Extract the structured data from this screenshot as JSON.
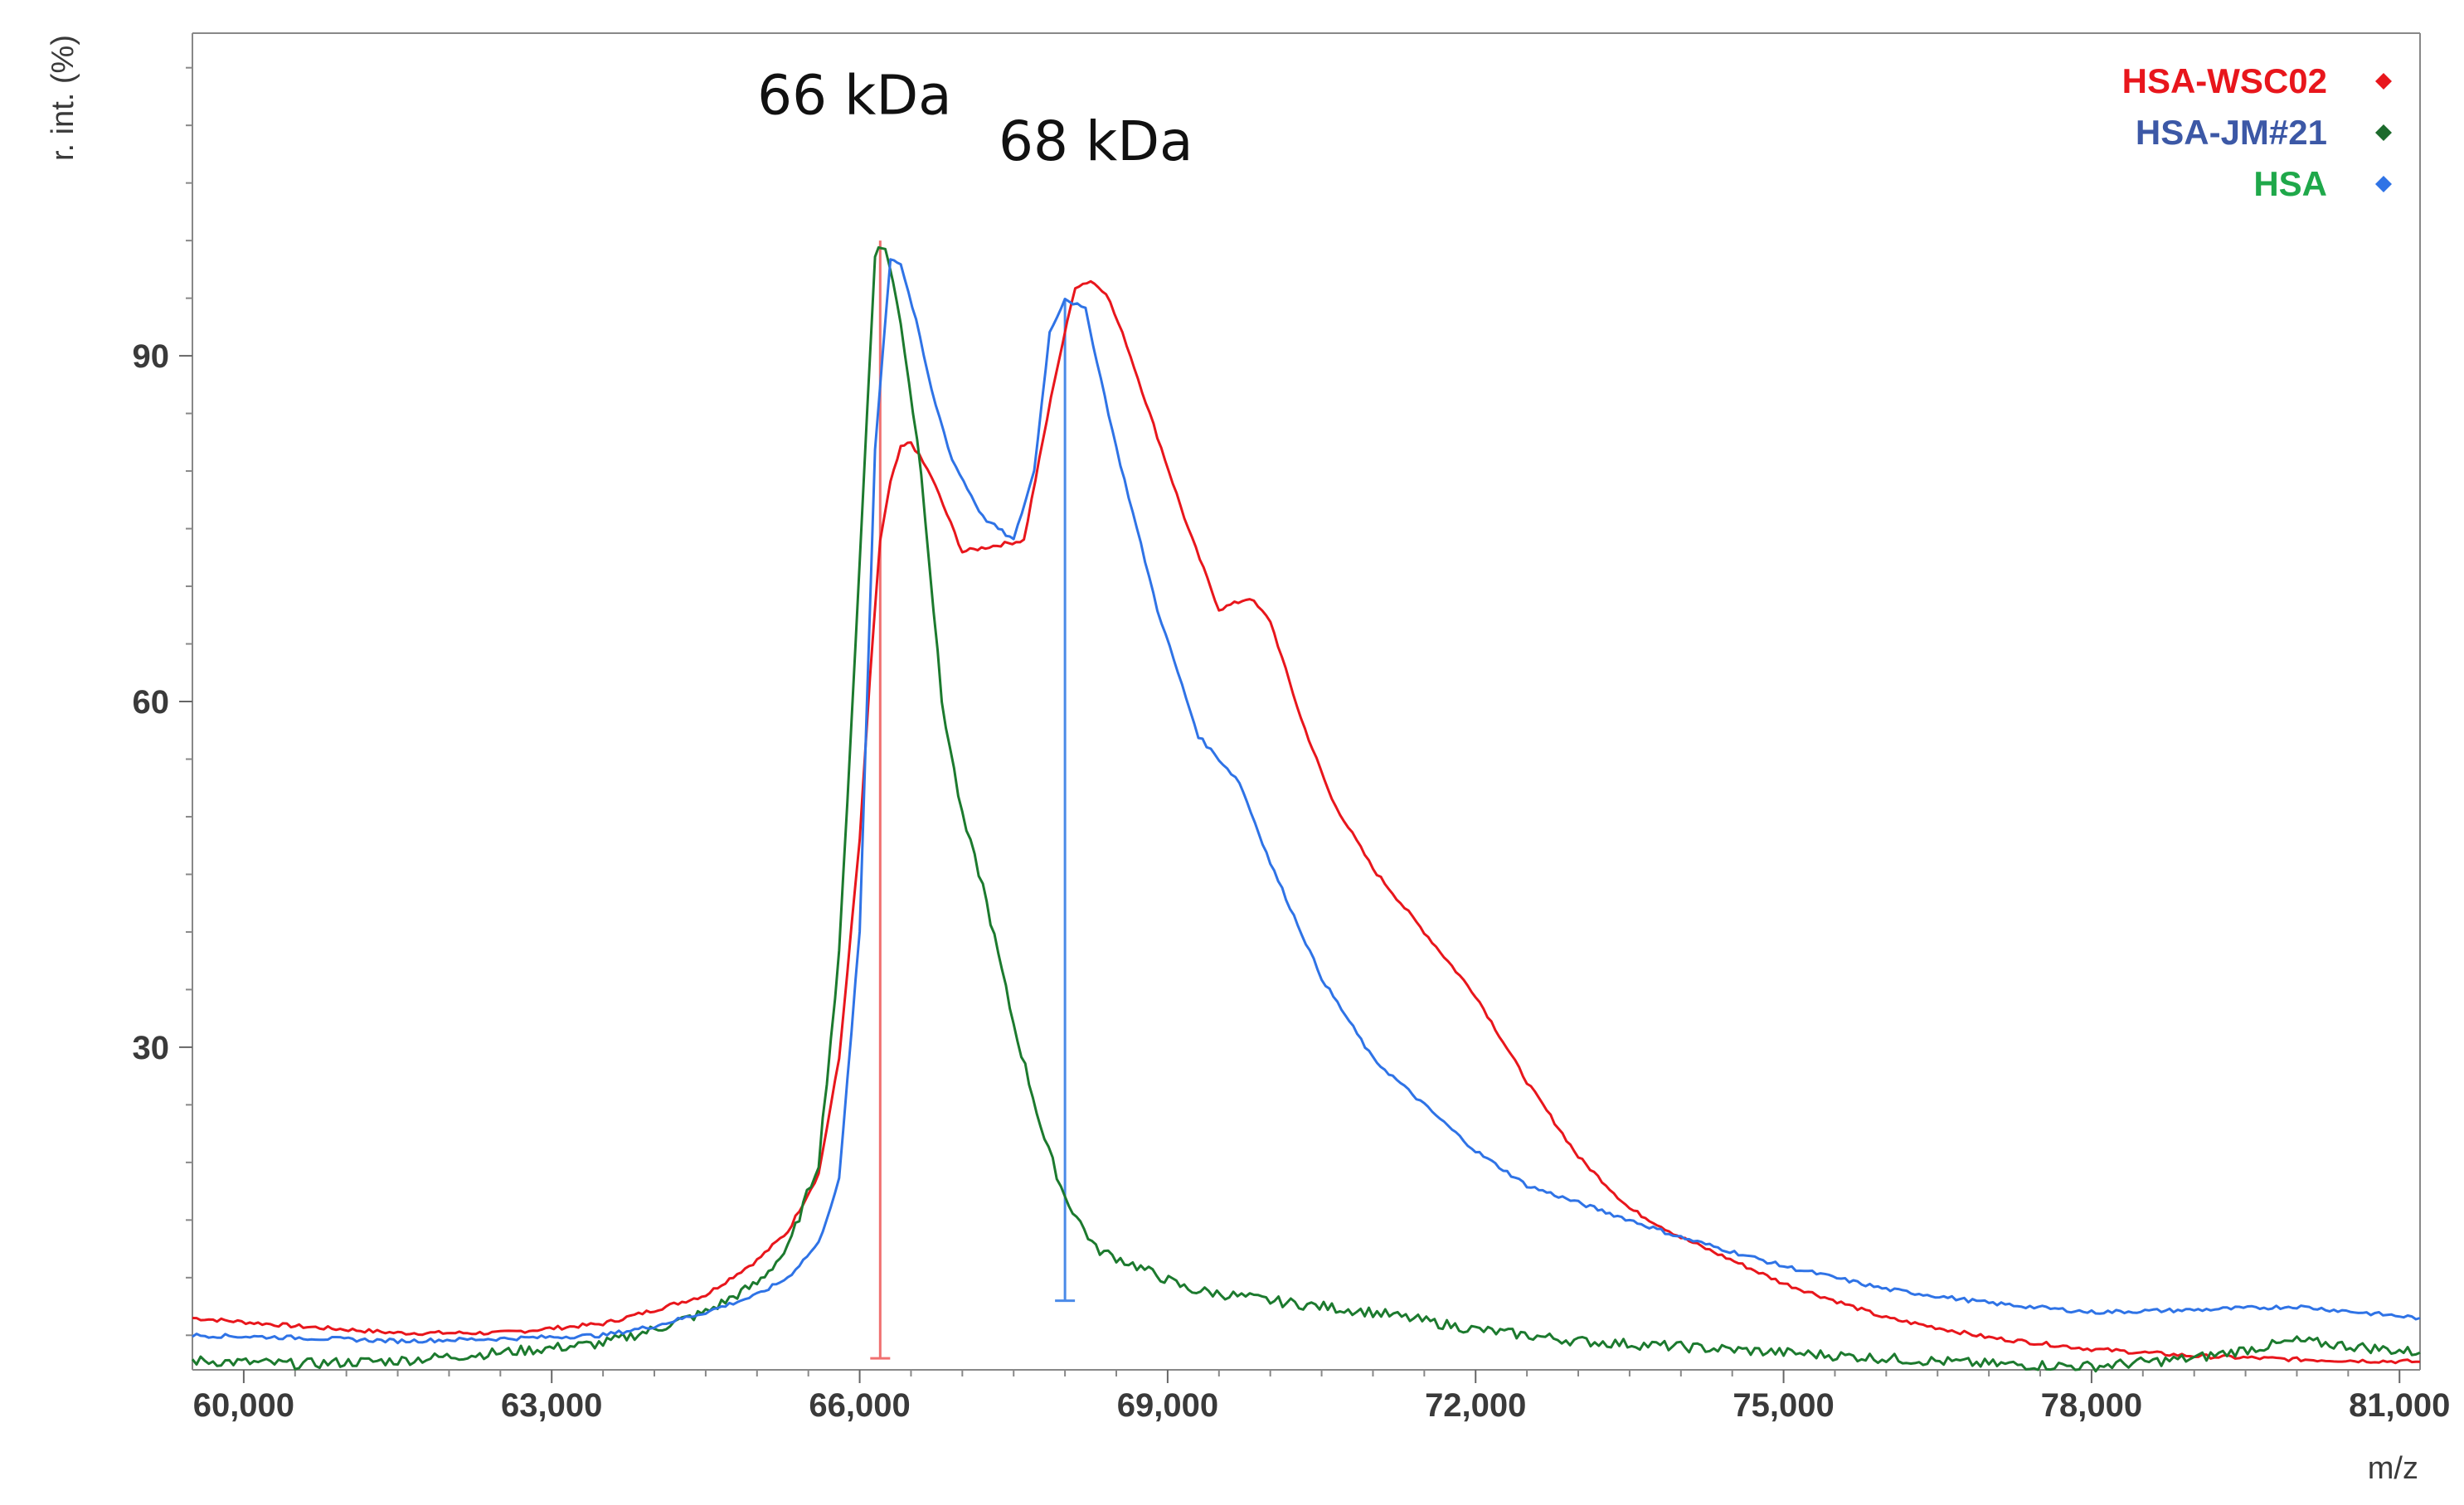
{
  "chart_data": {
    "type": "line",
    "title": "",
    "xlabel": "m/z",
    "ylabel": "r. int. (%)",
    "xlim": [
      59500,
      81200
    ],
    "ylim": [
      2,
      118
    ],
    "x_ticks": [
      60000,
      63000,
      66000,
      69000,
      72000,
      75000,
      78000,
      81000
    ],
    "x_tick_labels": [
      "60,000",
      "63,000",
      "66,000",
      "69,000",
      "72,000",
      "75,000",
      "78,000",
      "81,000"
    ],
    "y_ticks": [
      30,
      60,
      90
    ],
    "y_tick_labels": [
      "30",
      "60",
      "90"
    ],
    "grid": false,
    "legend_position": "top-right",
    "legend": [
      {
        "label": "HSA-WSC02",
        "text_color": "#e8161c",
        "marker_color": "#e8161c"
      },
      {
        "label": "HSA-JM#21",
        "text_color": "#3c58a6",
        "marker_color": "#1c6b2c"
      },
      {
        "label": "HSA",
        "text_color": "#1fa84a",
        "marker_color": "#2f73e6"
      }
    ],
    "annotations": [
      {
        "text": "66 kDa",
        "x": 65950,
        "y": 111
      },
      {
        "text": "68 kDa",
        "x": 68300,
        "y": 107
      }
    ],
    "peak_markers": [
      {
        "x": 66200,
        "y_top": 100,
        "y_bottom": 3,
        "color": "#f07070"
      },
      {
        "x": 68000,
        "y_top": 95,
        "y_bottom": 8,
        "color": "#4a8ae8"
      }
    ],
    "series": [
      {
        "color": "#e8161c",
        "x": [
          59500,
          60500,
          61500,
          62500,
          63500,
          64000,
          64500,
          65000,
          65300,
          65600,
          65800,
          66000,
          66100,
          66200,
          66300,
          66400,
          66500,
          66700,
          67000,
          67300,
          67600,
          67900,
          68100,
          68250,
          68400,
          68600,
          68900,
          69200,
          69500,
          69800,
          70000,
          70300,
          70600,
          71000,
          71500,
          72000,
          72500,
          73000,
          73500,
          74000,
          75000,
          76000,
          77000,
          78000,
          79000,
          80000,
          81200
        ],
        "values": [
          6.5,
          5.8,
          5.2,
          5.2,
          6.0,
          7.2,
          8.5,
          11.5,
          14.0,
          19.0,
          29.0,
          48.0,
          62.0,
          74.0,
          79.0,
          82.0,
          82.5,
          79.5,
          73.0,
          73.5,
          74.0,
          88.0,
          96.0,
          96.5,
          95.5,
          91.0,
          83.0,
          75.0,
          68.0,
          69.0,
          67.0,
          58.5,
          51.5,
          45.5,
          40.0,
          34.5,
          27.0,
          20.5,
          16.0,
          13.5,
          9.5,
          6.5,
          4.8,
          3.8,
          3.2,
          2.9,
          2.7
        ]
      },
      {
        "color": "#1c7a2e",
        "x": [
          59500,
          60500,
          61500,
          62500,
          63500,
          64000,
          64500,
          65000,
          65300,
          65600,
          65800,
          66000,
          66150,
          66250,
          66400,
          66600,
          66800,
          67000,
          67200,
          67500,
          67800,
          68000,
          68300,
          68700,
          69200,
          70000,
          71000,
          72000,
          73000,
          74000,
          75000,
          76000,
          77000,
          78000,
          79000,
          80000,
          81200
        ],
        "values": [
          2.8,
          2.5,
          2.8,
          3.5,
          4.3,
          5.5,
          7.0,
          9.5,
          12.5,
          20.0,
          38.0,
          72.0,
          99.0,
          99.5,
          93.0,
          80.0,
          60.0,
          50.0,
          44.0,
          32.0,
          22.0,
          17.0,
          12.5,
          11.0,
          9.0,
          8.0,
          7.0,
          5.5,
          4.5,
          4.0,
          3.5,
          3.0,
          2.5,
          2.3,
          3.0,
          4.5,
          3.5
        ]
      },
      {
        "color": "#2f73e6",
        "x": [
          59500,
          60500,
          61500,
          62500,
          63500,
          64000,
          64500,
          65000,
          65300,
          65600,
          65800,
          66000,
          66150,
          66300,
          66400,
          66550,
          66700,
          66900,
          67200,
          67500,
          67700,
          67850,
          68000,
          68200,
          68500,
          68900,
          69300,
          69700,
          70000,
          70500,
          71000,
          71500,
          72000,
          72500,
          73000,
          73500,
          74000,
          75000,
          76000,
          77000,
          78000,
          79000,
          80000,
          81200
        ],
        "values": [
          5.0,
          4.8,
          4.5,
          4.7,
          5.0,
          5.8,
          7.0,
          8.5,
          10.0,
          13.0,
          18.5,
          40.0,
          82.0,
          98.5,
          98.0,
          93.0,
          87.0,
          81.0,
          76.0,
          74.0,
          80.0,
          92.0,
          95.0,
          94.0,
          82.0,
          68.0,
          57.0,
          53.0,
          46.0,
          36.0,
          29.0,
          25.0,
          21.0,
          18.0,
          16.5,
          15.0,
          13.5,
          11.0,
          9.0,
          7.8,
          7.0,
          7.2,
          7.5,
          6.5
        ]
      }
    ]
  }
}
